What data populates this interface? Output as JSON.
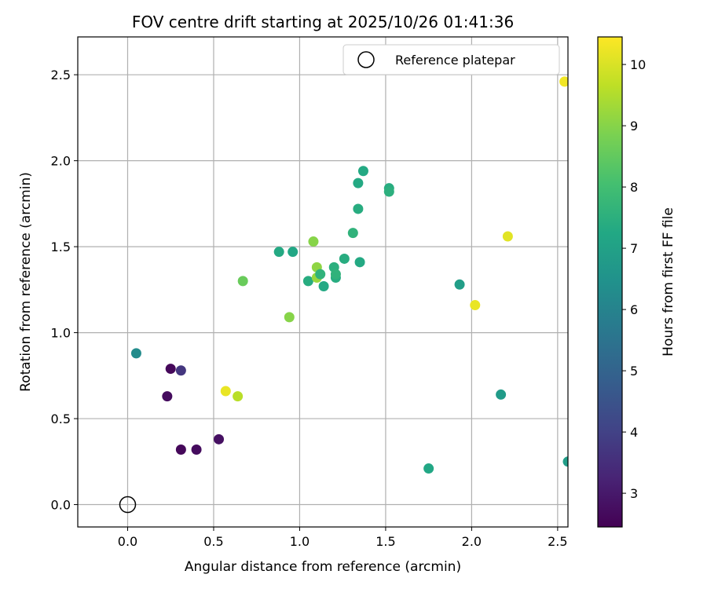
{
  "chart_data": {
    "type": "scatter",
    "title": "FOV centre drift starting at 2025/10/26 01:41:36",
    "xlabel": "Angular distance from reference (arcmin)",
    "ylabel": "Rotation from reference (arcmin)",
    "colorbar_label": "Hours from first FF file",
    "xlim": [
      -0.29,
      2.56
    ],
    "ylim": [
      -0.13,
      2.72
    ],
    "xticks": [
      0.0,
      0.5,
      1.0,
      1.5,
      2.0,
      2.5
    ],
    "xtick_labels": [
      "0.0",
      "0.5",
      "1.0",
      "1.5",
      "2.0",
      "2.5"
    ],
    "yticks": [
      0.0,
      0.5,
      1.0,
      1.5,
      2.0,
      2.5
    ],
    "ytick_labels": [
      "0.0",
      "0.5",
      "1.0",
      "1.5",
      "2.0",
      "2.5"
    ],
    "colorbar_range": [
      2.45,
      10.45
    ],
    "colorbar_ticks": [
      3,
      4,
      5,
      6,
      7,
      8,
      9,
      10
    ],
    "colorbar_tick_labels": [
      "3",
      "4",
      "5",
      "6",
      "7",
      "8",
      "9",
      "10"
    ],
    "grid": true,
    "legend": {
      "position": "top-right",
      "entries": [
        "Reference platepar"
      ]
    },
    "reference": {
      "x": 0.0,
      "y": 0.0
    },
    "points": [
      {
        "x": 0.25,
        "y": 0.79,
        "hours": 2.6
      },
      {
        "x": 0.23,
        "y": 0.63,
        "hours": 2.7
      },
      {
        "x": 0.31,
        "y": 0.78,
        "hours": 3.7
      },
      {
        "x": 0.31,
        "y": 0.32,
        "hours": 2.6
      },
      {
        "x": 0.4,
        "y": 0.32,
        "hours": 2.7
      },
      {
        "x": 0.53,
        "y": 0.38,
        "hours": 2.8
      },
      {
        "x": 0.05,
        "y": 0.88,
        "hours": 6.3
      },
      {
        "x": 0.57,
        "y": 0.66,
        "hours": 10.2
      },
      {
        "x": 0.64,
        "y": 0.63,
        "hours": 9.6
      },
      {
        "x": 0.67,
        "y": 1.3,
        "hours": 8.6
      },
      {
        "x": 0.88,
        "y": 1.47,
        "hours": 7.3
      },
      {
        "x": 0.96,
        "y": 1.47,
        "hours": 7.2
      },
      {
        "x": 0.94,
        "y": 1.09,
        "hours": 9.0
      },
      {
        "x": 1.05,
        "y": 1.3,
        "hours": 7.4
      },
      {
        "x": 1.08,
        "y": 1.53,
        "hours": 9.0
      },
      {
        "x": 1.1,
        "y": 1.38,
        "hours": 9.1
      },
      {
        "x": 1.1,
        "y": 1.32,
        "hours": 9.2
      },
      {
        "x": 1.12,
        "y": 1.34,
        "hours": 7.6
      },
      {
        "x": 1.14,
        "y": 1.27,
        "hours": 7.3
      },
      {
        "x": 1.2,
        "y": 1.38,
        "hours": 7.5
      },
      {
        "x": 1.21,
        "y": 1.32,
        "hours": 7.4
      },
      {
        "x": 1.21,
        "y": 1.34,
        "hours": 7.6
      },
      {
        "x": 1.26,
        "y": 1.43,
        "hours": 7.4
      },
      {
        "x": 1.31,
        "y": 1.58,
        "hours": 7.6
      },
      {
        "x": 1.35,
        "y": 1.41,
        "hours": 7.3
      },
      {
        "x": 1.34,
        "y": 1.72,
        "hours": 7.4
      },
      {
        "x": 1.34,
        "y": 1.87,
        "hours": 7.3
      },
      {
        "x": 1.37,
        "y": 1.94,
        "hours": 7.3
      },
      {
        "x": 1.52,
        "y": 1.84,
        "hours": 7.4
      },
      {
        "x": 1.52,
        "y": 1.82,
        "hours": 7.5
      },
      {
        "x": 1.75,
        "y": 0.21,
        "hours": 7.2
      },
      {
        "x": 1.93,
        "y": 1.28,
        "hours": 6.9
      },
      {
        "x": 2.02,
        "y": 1.16,
        "hours": 10.2
      },
      {
        "x": 2.17,
        "y": 0.64,
        "hours": 6.8
      },
      {
        "x": 2.21,
        "y": 1.56,
        "hours": 10.1
      },
      {
        "x": 2.54,
        "y": 2.46,
        "hours": 10.3
      },
      {
        "x": 2.56,
        "y": 0.25,
        "hours": 6.9
      }
    ]
  }
}
